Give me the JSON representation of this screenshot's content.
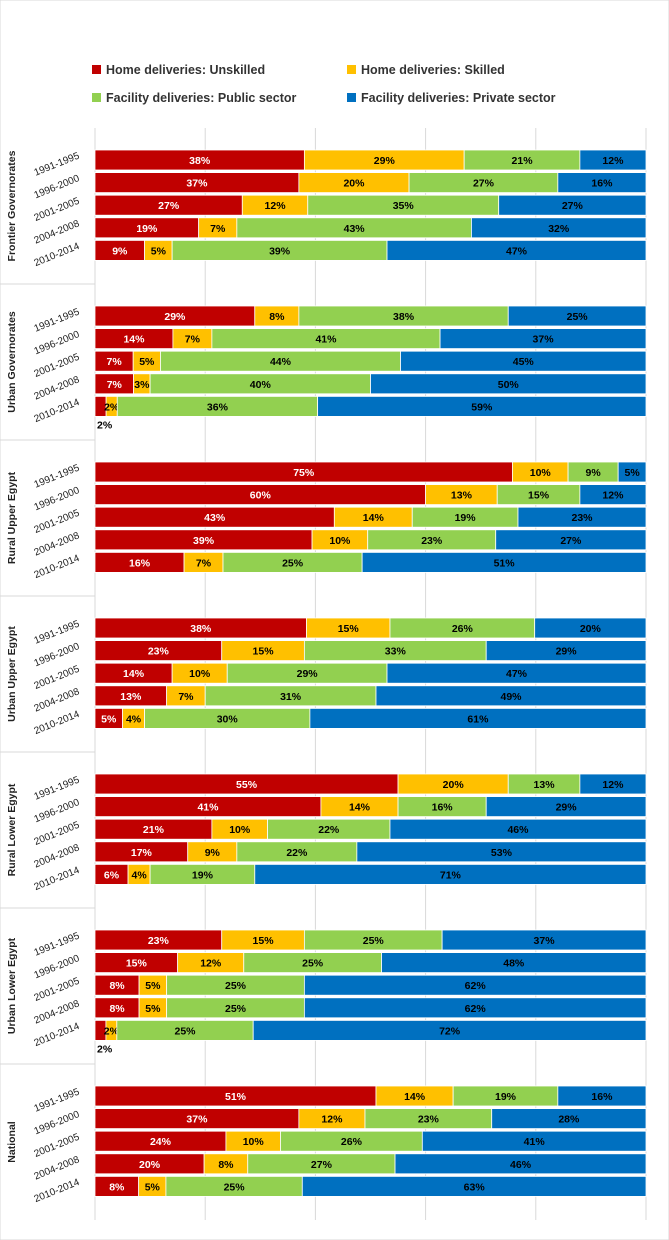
{
  "chart_data": {
    "type": "bar",
    "orientation": "horizontal",
    "stacked": "percent",
    "title": "",
    "xlabel": "",
    "ylabel": "",
    "xlim": [
      0,
      100
    ],
    "grid": true,
    "legend_position": "top",
    "series": [
      {
        "name": "Home deliveries: Unskilled",
        "color": "#c00000"
      },
      {
        "name": "Home deliveries: Skilled",
        "color": "#ffc000"
      },
      {
        "name": "Facility deliveries: Public sector",
        "color": "#92d050"
      },
      {
        "name": "Facility deliveries: Private sector",
        "color": "#0070c0"
      }
    ],
    "periods": [
      "1991-1995",
      "1996-2000",
      "2001-2005",
      "2004-2008",
      "2010-2014"
    ],
    "groups": [
      {
        "name": "Frontier Governorates",
        "values": [
          [
            38,
            29,
            21,
            12
          ],
          [
            37,
            20,
            27,
            16
          ],
          [
            27,
            12,
            35,
            27
          ],
          [
            19,
            7,
            43,
            32
          ],
          [
            9,
            5,
            39,
            47
          ]
        ]
      },
      {
        "name": "Urban Governorates",
        "values": [
          [
            29,
            8,
            38,
            25
          ],
          [
            14,
            7,
            41,
            37
          ],
          [
            7,
            5,
            44,
            45
          ],
          [
            7,
            3,
            40,
            50
          ],
          [
            2,
            2,
            36,
            59
          ]
        ],
        "below_label": "2%"
      },
      {
        "name": "Rural Upper Egypt",
        "values": [
          [
            75,
            10,
            9,
            5
          ],
          [
            60,
            13,
            15,
            12
          ],
          [
            43,
            14,
            19,
            23
          ],
          [
            39,
            10,
            23,
            27
          ],
          [
            16,
            7,
            25,
            51
          ]
        ]
      },
      {
        "name": "Urban Upper Egypt",
        "values": [
          [
            38,
            15,
            26,
            20
          ],
          [
            23,
            15,
            33,
            29
          ],
          [
            14,
            10,
            29,
            47
          ],
          [
            13,
            7,
            31,
            49
          ],
          [
            5,
            4,
            30,
            61
          ]
        ]
      },
      {
        "name": "Rural Lower Egypt",
        "values": [
          [
            55,
            20,
            13,
            12
          ],
          [
            41,
            14,
            16,
            29
          ],
          [
            21,
            10,
            22,
            46
          ],
          [
            17,
            9,
            22,
            53
          ],
          [
            6,
            4,
            19,
            71
          ]
        ]
      },
      {
        "name": "Urban Lower Egypt",
        "values": [
          [
            23,
            15,
            25,
            37
          ],
          [
            15,
            12,
            25,
            48
          ],
          [
            8,
            5,
            25,
            62
          ],
          [
            8,
            5,
            25,
            62
          ],
          [
            2,
            2,
            25,
            72
          ]
        ],
        "below_label": "2%"
      },
      {
        "name": "National",
        "values": [
          [
            51,
            14,
            19,
            16
          ],
          [
            37,
            12,
            23,
            28
          ],
          [
            24,
            10,
            26,
            41
          ],
          [
            20,
            8,
            27,
            46
          ],
          [
            8,
            5,
            25,
            63
          ]
        ]
      }
    ]
  }
}
